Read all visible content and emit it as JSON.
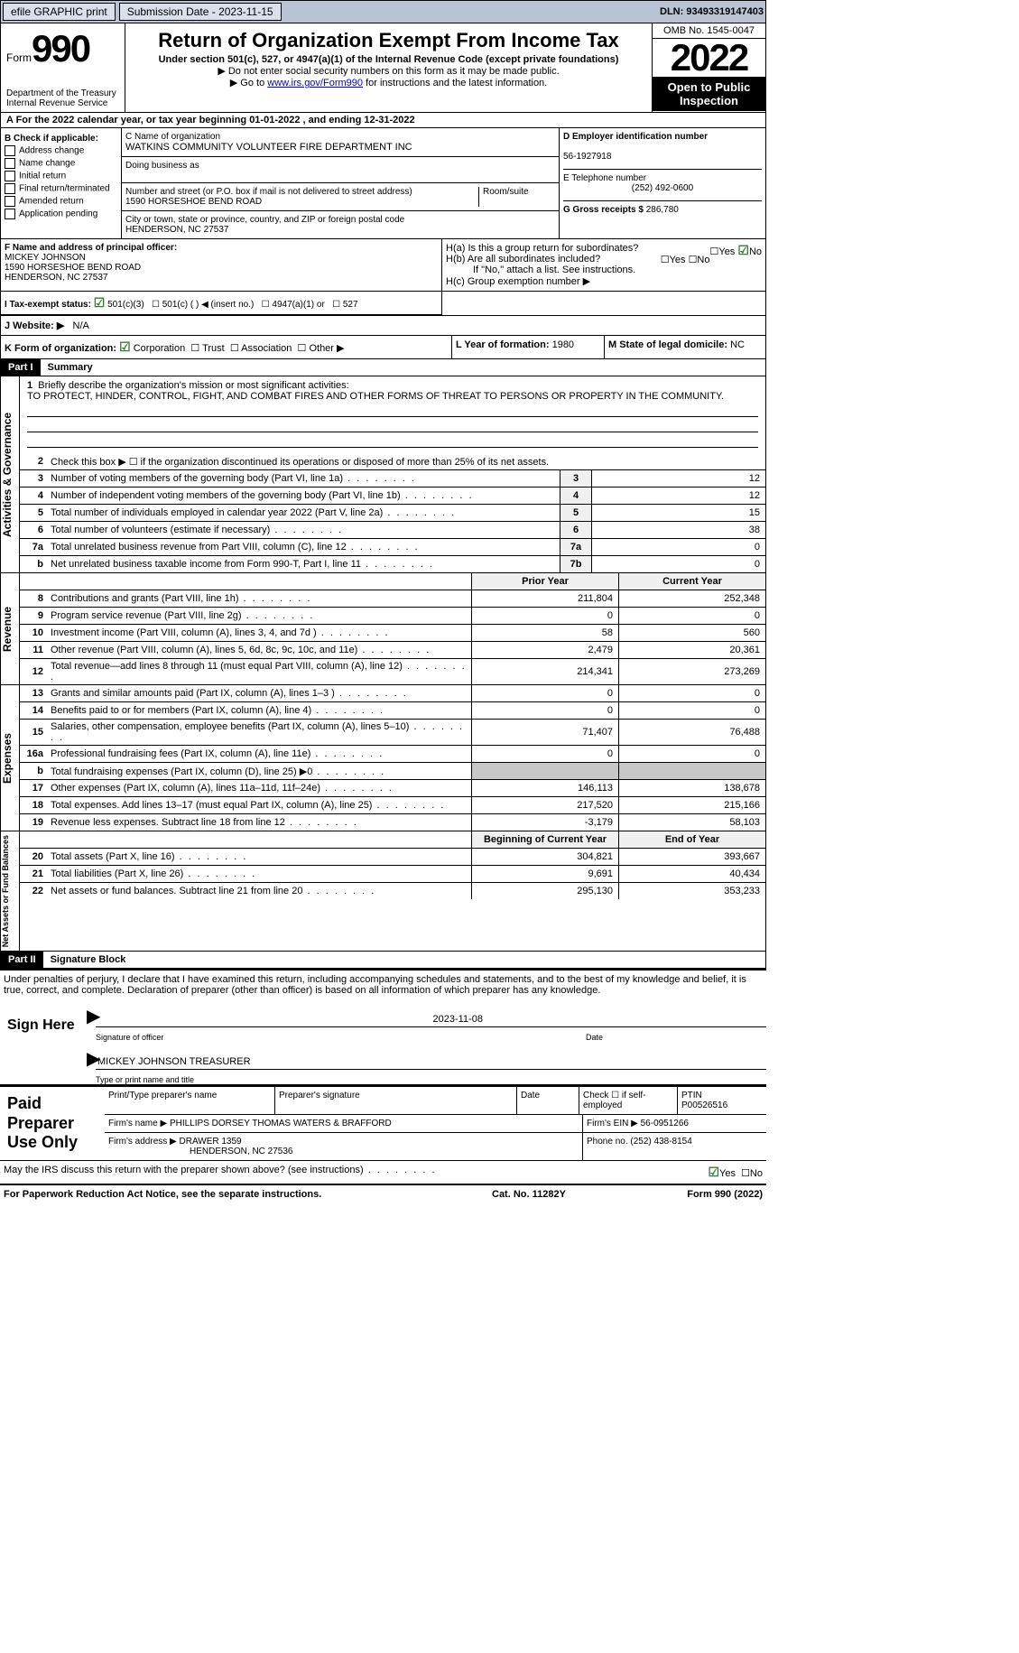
{
  "topbar": {
    "efile": "efile GRAPHIC print",
    "submission": "Submission Date - 2023-11-15",
    "dln": "DLN: 93493319147403"
  },
  "header": {
    "form": "Form",
    "form_num": "990",
    "dept": "Department of the Treasury",
    "irs": "Internal Revenue Service",
    "title": "Return of Organization Exempt From Income Tax",
    "sub": "Under section 501(c), 527, or 4947(a)(1) of the Internal Revenue Code (except private foundations)",
    "note1": "▶ Do not enter social security numbers on this form as it may be made public.",
    "note2": "▶ Go to ",
    "link": "www.irs.gov/Form990",
    "note3": " for instructions and the latest information.",
    "omb": "OMB No. 1545-0047",
    "year": "2022",
    "open": "Open to Public Inspection"
  },
  "rowA": "A For the 2022 calendar year, or tax year beginning 01-01-2022   , and ending 12-31-2022",
  "colB": {
    "label": "B Check if applicable:",
    "items": [
      "Address change",
      "Name change",
      "Initial return",
      "Final return/terminated",
      "Amended return",
      "Application pending"
    ]
  },
  "colC": {
    "name_label": "C Name of organization",
    "name": "WATKINS COMMUNITY VOLUNTEER FIRE DEPARTMENT INC",
    "dba_label": "Doing business as",
    "addr_label": "Number and street (or P.O. box if mail is not delivered to street address)",
    "room": "Room/suite",
    "addr": "1590 HORSESHOE BEND ROAD",
    "city_label": "City or town, state or province, country, and ZIP or foreign postal code",
    "city": "HENDERSON, NC  27537"
  },
  "colD": {
    "label": "D Employer identification number",
    "ein": "56-1927918",
    "tel_label": "E Telephone number",
    "tel": "(252) 492-0600",
    "gross_label": "G Gross receipts $",
    "gross": "286,780"
  },
  "rowF": {
    "label": "F Name and address of principal officer:",
    "name": "MICKEY JOHNSON",
    "addr1": "1590 HORSESHOE BEND ROAD",
    "addr2": "HENDERSON, NC  27537"
  },
  "rowH": {
    "ha": "H(a)  Is this a group return for subordinates?",
    "hb": "H(b)  Are all subordinates included?",
    "note": "If \"No,\" attach a list. See instructions.",
    "hc": "H(c)  Group exemption number ▶"
  },
  "taxStatus": {
    "label": "I   Tax-exempt status:",
    "opts": [
      "501(c)(3)",
      "501(c) (  ) ◀ (insert no.)",
      "4947(a)(1) or",
      "527"
    ]
  },
  "website": {
    "label": "J   Website: ▶",
    "val": "N/A"
  },
  "rowK": {
    "label": "K Form of organization:",
    "opts": [
      "Corporation",
      "Trust",
      "Association",
      "Other ▶"
    ],
    "year_label": "L Year of formation:",
    "year": "1980",
    "state_label": "M State of legal domicile:",
    "state": "NC"
  },
  "part1": {
    "header": "Part I",
    "title": "Summary",
    "mission_label": "Briefly describe the organization's mission or most significant activities:",
    "mission": "TO PROTECT, HINDER, CONTROL, FIGHT, AND COMBAT FIRES AND OTHER FORMS OF THREAT TO PERSONS OR PROPERTY IN THE COMMUNITY.",
    "line2": "Check this box ▶ ☐ if the organization discontinued its operations or disposed of more than 25% of its net assets."
  },
  "sections": {
    "gov": "Activities & Governance",
    "rev": "Revenue",
    "exp": "Expenses",
    "net": "Net Assets or Fund Balances"
  },
  "lines_single": [
    {
      "n": "3",
      "t": "Number of voting members of the governing body (Part VI, line 1a)",
      "box": "3",
      "v": "12"
    },
    {
      "n": "4",
      "t": "Number of independent voting members of the governing body (Part VI, line 1b)",
      "box": "4",
      "v": "12"
    },
    {
      "n": "5",
      "t": "Total number of individuals employed in calendar year 2022 (Part V, line 2a)",
      "box": "5",
      "v": "15"
    },
    {
      "n": "6",
      "t": "Total number of volunteers (estimate if necessary)",
      "box": "6",
      "v": "38"
    },
    {
      "n": "7a",
      "t": "Total unrelated business revenue from Part VIII, column (C), line 12",
      "box": "7a",
      "v": "0"
    },
    {
      "n": "b",
      "t": "Net unrelated business taxable income from Form 990-T, Part I, line 11",
      "box": "7b",
      "v": "0"
    }
  ],
  "col_headers": {
    "prior": "Prior Year",
    "curr": "Current Year",
    "beg": "Beginning of Current Year",
    "end": "End of Year"
  },
  "lines_rev": [
    {
      "n": "8",
      "t": "Contributions and grants (Part VIII, line 1h)",
      "p": "211,804",
      "c": "252,348"
    },
    {
      "n": "9",
      "t": "Program service revenue (Part VIII, line 2g)",
      "p": "0",
      "c": "0"
    },
    {
      "n": "10",
      "t": "Investment income (Part VIII, column (A), lines 3, 4, and 7d )",
      "p": "58",
      "c": "560"
    },
    {
      "n": "11",
      "t": "Other revenue (Part VIII, column (A), lines 5, 6d, 8c, 9c, 10c, and 11e)",
      "p": "2,479",
      "c": "20,361"
    },
    {
      "n": "12",
      "t": "Total revenue—add lines 8 through 11 (must equal Part VIII, column (A), line 12)",
      "p": "214,341",
      "c": "273,269"
    }
  ],
  "lines_exp": [
    {
      "n": "13",
      "t": "Grants and similar amounts paid (Part IX, column (A), lines 1–3 )",
      "p": "0",
      "c": "0"
    },
    {
      "n": "14",
      "t": "Benefits paid to or for members (Part IX, column (A), line 4)",
      "p": "0",
      "c": "0"
    },
    {
      "n": "15",
      "t": "Salaries, other compensation, employee benefits (Part IX, column (A), lines 5–10)",
      "p": "71,407",
      "c": "76,488"
    },
    {
      "n": "16a",
      "t": "Professional fundraising fees (Part IX, column (A), line 11e)",
      "p": "0",
      "c": "0"
    },
    {
      "n": "b",
      "t": "Total fundraising expenses (Part IX, column (D), line 25) ▶0",
      "p": "",
      "c": "",
      "shaded": true
    },
    {
      "n": "17",
      "t": "Other expenses (Part IX, column (A), lines 11a–11d, 11f–24e)",
      "p": "146,113",
      "c": "138,678"
    },
    {
      "n": "18",
      "t": "Total expenses. Add lines 13–17 (must equal Part IX, column (A), line 25)",
      "p": "217,520",
      "c": "215,166"
    },
    {
      "n": "19",
      "t": "Revenue less expenses. Subtract line 18 from line 12",
      "p": "-3,179",
      "c": "58,103"
    }
  ],
  "lines_net": [
    {
      "n": "20",
      "t": "Total assets (Part X, line 16)",
      "p": "304,821",
      "c": "393,667"
    },
    {
      "n": "21",
      "t": "Total liabilities (Part X, line 26)",
      "p": "9,691",
      "c": "40,434"
    },
    {
      "n": "22",
      "t": "Net assets or fund balances. Subtract line 21 from line 20",
      "p": "295,130",
      "c": "353,233"
    }
  ],
  "part2": {
    "header": "Part II",
    "title": "Signature Block"
  },
  "penalties": "Under penalties of perjury, I declare that I have examined this return, including accompanying schedules and statements, and to the best of my knowledge and belief, it is true, correct, and complete. Declaration of preparer (other than officer) is based on all information of which preparer has any knowledge.",
  "sign": {
    "here": "Sign Here",
    "date": "2023-11-08",
    "sig_label": "Signature of officer",
    "date_label": "Date",
    "name": "MICKEY JOHNSON  TREASURER",
    "name_label": "Type or print name and title"
  },
  "prep": {
    "label": "Paid Preparer Use Only",
    "h1": "Print/Type preparer's name",
    "h2": "Preparer's signature",
    "h3": "Date",
    "h4": "Check ☐ if self-employed",
    "h5": "PTIN",
    "ptin": "P00526516",
    "firm_label": "Firm's name    ▶",
    "firm": "PHILLIPS DORSEY THOMAS WATERS & BRAFFORD",
    "ein_label": "Firm's EIN ▶",
    "ein": "56-0951266",
    "addr_label": "Firm's address ▶",
    "addr1": "DRAWER 1359",
    "addr2": "HENDERSON, NC  27536",
    "phone_label": "Phone no.",
    "phone": "(252) 438-8154"
  },
  "discuss": "May the IRS discuss this return with the preparer shown above? (see instructions)",
  "footer": {
    "pra": "For Paperwork Reduction Act Notice, see the separate instructions.",
    "cat": "Cat. No. 11282Y",
    "form": "Form 990 (2022)"
  }
}
